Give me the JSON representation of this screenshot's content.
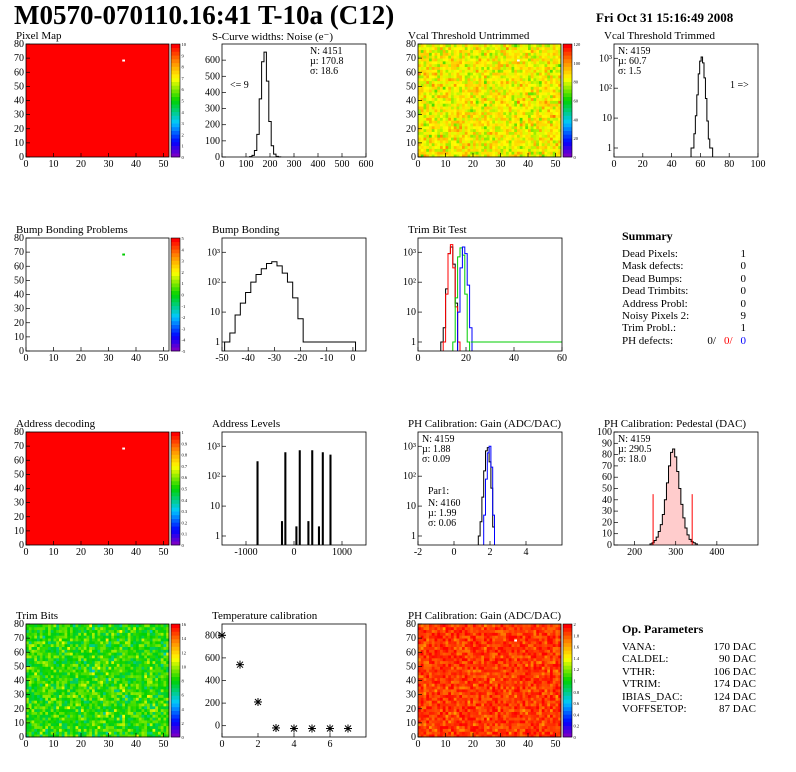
{
  "header": {
    "title": "M0570-070110.16:41 T-10a (C12)",
    "date": "Fri Oct 31 15:16:49 2008"
  },
  "summary": {
    "title": "Summary",
    "rows": [
      {
        "label": "Dead Pixels:",
        "value": "1"
      },
      {
        "label": "Mask defects:",
        "value": "0"
      },
      {
        "label": "Dead Bumps:",
        "value": "0"
      },
      {
        "label": "Dead Trimbits:",
        "value": "0"
      },
      {
        "label": "Address Probl:",
        "value": "0"
      },
      {
        "label": "Noisy Pixels 2:",
        "value": "9"
      },
      {
        "label": "Trim Probl.:",
        "value": "1"
      }
    ],
    "ph_defects": {
      "label": "PH defects:",
      "v1": "0/",
      "v2": "0/",
      "v3": "0"
    }
  },
  "op_params": {
    "title": "Op. Parameters",
    "rows": [
      {
        "label": "VANA:",
        "value": "170 DAC"
      },
      {
        "label": "CALDEL:",
        "value": "90 DAC"
      },
      {
        "label": "VTHR:",
        "value": "106 DAC"
      },
      {
        "label": "VTRIM:",
        "value": "174 DAC"
      },
      {
        "label": "IBIAS_DAC:",
        "value": "124 DAC"
      },
      {
        "label": "VOFFSETOP:",
        "value": "87 DAC"
      }
    ]
  },
  "colors": {
    "red": "#ff0000",
    "blue": "#0000ff",
    "green": "#00cc00"
  },
  "chart_data": [
    {
      "id": "pixelmap",
      "type": "heatmap",
      "title": "Pixel Map",
      "xlim": [
        0,
        52
      ],
      "ylim": [
        0,
        80
      ],
      "xticks": [
        0,
        10,
        20,
        30,
        40,
        50
      ],
      "yticks": [
        0,
        10,
        20,
        30,
        40,
        50,
        60,
        70,
        80
      ],
      "palette_labels": [
        "0",
        "1",
        "2",
        "3",
        "4",
        "5",
        "6",
        "7",
        "8",
        "9",
        "10"
      ],
      "fill": "uniform",
      "fill_value": 10,
      "special": [
        {
          "x": 35,
          "y": 68,
          "value": 0
        }
      ]
    },
    {
      "id": "scurve",
      "type": "bar",
      "title": "S-Curve widths: Noise (e⁻)",
      "xlim": [
        0,
        600
      ],
      "ylim": [
        0,
        700
      ],
      "xticks": [
        0,
        100,
        200,
        300,
        400,
        500,
        600
      ],
      "yticks": [
        0,
        100,
        200,
        300,
        400,
        500,
        600
      ],
      "stats": [
        "N: 4151",
        "µ: 170.8",
        "σ: 18.6"
      ],
      "annotation": "<= 9",
      "series": [
        {
          "name": "",
          "color": "#000",
          "x": [
            120,
            130,
            140,
            150,
            160,
            170,
            180,
            190,
            200,
            210,
            220,
            230,
            240
          ],
          "values": [
            2,
            10,
            40,
            140,
            360,
            590,
            650,
            470,
            220,
            70,
            18,
            4,
            1
          ]
        }
      ]
    },
    {
      "id": "vcal_untrimmed",
      "type": "heatmap",
      "title": "Vcal Threshold Untrimmed",
      "xlim": [
        0,
        52
      ],
      "ylim": [
        0,
        80
      ],
      "xticks": [
        0,
        10,
        20,
        30,
        40,
        50
      ],
      "yticks": [
        0,
        10,
        20,
        30,
        40,
        50,
        60,
        70,
        80
      ],
      "palette_labels": [
        "0",
        "20",
        "40",
        "60",
        "80",
        "100",
        "120"
      ],
      "fill": "noise",
      "fill_value": 85,
      "spread": 20,
      "special": [
        {
          "x": 36,
          "y": 68,
          "value": 140
        }
      ]
    },
    {
      "id": "vcal_trimmed",
      "type": "bar",
      "title": "Vcal Threshold Trimmed",
      "log": true,
      "xlim": [
        0,
        100
      ],
      "ylim": [
        0.5,
        3000
      ],
      "xticks": [
        0,
        20,
        40,
        60,
        80,
        100
      ],
      "yticks": [
        1,
        10,
        100,
        1000
      ],
      "ytick_labels": [
        "1",
        "10",
        "10²",
        "10³"
      ],
      "stats": [
        "N: 4159",
        "µ: 60.7",
        "σ: 1.5"
      ],
      "annotation": "1 =>",
      "series": [
        {
          "name": "",
          "color": "#000",
          "x": [
            54,
            55,
            56,
            57,
            58,
            59,
            60,
            61,
            62,
            63,
            64,
            65,
            66,
            67,
            68
          ],
          "values": [
            1,
            1,
            3,
            12,
            60,
            300,
            800,
            1100,
            700,
            220,
            45,
            8,
            2,
            1,
            1
          ]
        }
      ]
    },
    {
      "id": "bump_problems",
      "type": "heatmap",
      "title": "Bump Bonding Problems",
      "xlim": [
        0,
        52
      ],
      "ylim": [
        0,
        80
      ],
      "xticks": [
        0,
        10,
        20,
        30,
        40,
        50
      ],
      "yticks": [
        0,
        10,
        20,
        30,
        40,
        50,
        60,
        70,
        80
      ],
      "palette_labels": [
        "-5",
        "-4",
        "-3",
        "-2",
        "-1",
        "0",
        "1",
        "2",
        "3",
        "4",
        "5"
      ],
      "fill": "none",
      "special": [
        {
          "x": 35,
          "y": 68,
          "value": 0.4
        }
      ]
    },
    {
      "id": "bump_bonding",
      "type": "bar",
      "title": "Bump Bonding",
      "log": true,
      "xlim": [
        -50,
        5
      ],
      "ylim": [
        0.5,
        3000
      ],
      "xticks": [
        -50,
        -40,
        -30,
        -20,
        -10,
        0
      ],
      "yticks": [
        1,
        10,
        100,
        1000
      ],
      "ytick_labels": [
        "1",
        "10",
        "10²",
        "10³"
      ],
      "series": [
        {
          "name": "",
          "color": "#000",
          "x": [
            -48,
            -46,
            -44,
            -42,
            -40,
            -38,
            -36,
            -34,
            -32,
            -30,
            -28,
            -26,
            -24,
            -22,
            -20,
            -18,
            0
          ],
          "values": [
            1,
            2,
            8,
            20,
            45,
            100,
            180,
            280,
            420,
            480,
            350,
            200,
            100,
            30,
            6,
            1,
            1
          ]
        }
      ]
    },
    {
      "id": "trimbit_test",
      "type": "bar",
      "title": "Trim Bit Test",
      "log": true,
      "xlim": [
        0,
        60
      ],
      "ylim": [
        0.5,
        3000
      ],
      "xticks": [
        0,
        20,
        40,
        60
      ],
      "yticks": [
        1,
        10,
        100,
        1000
      ],
      "ytick_labels": [
        "1",
        "10",
        "10²",
        "10³"
      ],
      "series": [
        {
          "name": "",
          "color": "#000",
          "x": [
            10,
            11,
            12,
            13,
            14,
            15,
            16
          ],
          "values": [
            1,
            3,
            60,
            900,
            1500,
            400,
            20
          ]
        },
        {
          "name": "",
          "color": "#ff0000",
          "x": [
            11,
            12,
            13,
            14,
            15,
            16,
            17
          ],
          "values": [
            1,
            40,
            900,
            1800,
            300,
            15,
            1
          ]
        },
        {
          "name": "",
          "color": "#00cc00",
          "x": [
            15,
            16,
            17,
            18,
            19,
            20,
            21
          ],
          "values": [
            1,
            30,
            700,
            1400,
            800,
            40,
            1
          ]
        },
        {
          "name": "",
          "color": "#0000ff",
          "x": [
            17,
            18,
            19,
            20,
            21,
            22
          ],
          "values": [
            10,
            300,
            1500,
            900,
            80,
            3
          ]
        }
      ]
    },
    {
      "id": "address_decoding",
      "type": "heatmap",
      "title": "Address decoding",
      "xlim": [
        0,
        52
      ],
      "ylim": [
        0,
        80
      ],
      "xticks": [
        0,
        10,
        20,
        30,
        40,
        50
      ],
      "yticks": [
        0,
        10,
        20,
        30,
        40,
        50,
        60,
        70,
        80
      ],
      "palette_labels": [
        "0",
        "0.1",
        "0.2",
        "0.3",
        "0.4",
        "0.5",
        "0.6",
        "0.7",
        "0.8",
        "0.9",
        "1"
      ],
      "fill": "uniform",
      "fill_value": 1,
      "special": [
        {
          "x": 35,
          "y": 68,
          "value": 0
        }
      ]
    },
    {
      "id": "address_levels",
      "type": "bar",
      "title": "Address Levels",
      "log": true,
      "xlim": [
        -1500,
        1500
      ],
      "ylim": [
        0.5,
        3000
      ],
      "xticks": [
        -1000,
        0,
        1000
      ],
      "yticks": [
        1,
        10,
        100,
        1000
      ],
      "ytick_labels": [
        "1",
        "10",
        "10²",
        "10³"
      ],
      "series": [
        {
          "name": "",
          "color": "#000",
          "x": [
            -760,
            -250,
            -180,
            50,
            120,
            300,
            380,
            520,
            600,
            760
          ],
          "values": [
            300,
            3,
            600,
            2,
            700,
            3,
            700,
            2,
            600,
            500
          ]
        }
      ]
    },
    {
      "id": "ph_gain",
      "type": "bar",
      "title": "PH Calibration: Gain (ADC/DAC)",
      "log": true,
      "xlim": [
        -2,
        6
      ],
      "ylim": [
        0.5,
        3000
      ],
      "xticks": [
        -2,
        0,
        2,
        4
      ],
      "yticks": [
        1,
        10,
        100,
        1000
      ],
      "ytick_labels": [
        "1",
        "10",
        "10²",
        "10³"
      ],
      "stats": [
        "N: 4159",
        "µ: 1.88",
        "σ: 0.09"
      ],
      "stats2_title": "Par1:",
      "stats2": [
        "N: 4160",
        "µ: 1.99",
        "σ: 0.06"
      ],
      "series": [
        {
          "name": "",
          "color": "#000",
          "x": [
            1.4,
            1.5,
            1.6,
            1.7,
            1.8,
            1.9,
            2.0,
            2.1,
            2.2
          ],
          "values": [
            1,
            3,
            20,
            150,
            700,
            900,
            300,
            40,
            2
          ]
        },
        {
          "name": "",
          "color": "#0000ff",
          "x": [
            1.7,
            1.8,
            1.9,
            2.0,
            2.1,
            2.2
          ],
          "values": [
            5,
            80,
            600,
            1000,
            200,
            5
          ]
        }
      ]
    },
    {
      "id": "ph_pedestal",
      "type": "bar",
      "title": "PH Calibration: Pedestal (DAC)",
      "xlim": [
        150,
        500
      ],
      "ylim": [
        0,
        100
      ],
      "xticks": [
        200,
        300,
        400
      ],
      "yticks": [
        0,
        10,
        20,
        30,
        40,
        50,
        60,
        70,
        80,
        90,
        100
      ],
      "stats": [
        "N: 4159",
        "µ: 290.5",
        "σ: 18.0"
      ],
      "cut_lines": [
        245,
        340
      ],
      "series": [
        {
          "name": "",
          "color": "#000",
          "x": [
            240,
            245,
            250,
            255,
            260,
            265,
            270,
            275,
            280,
            285,
            290,
            295,
            300,
            305,
            310,
            315,
            320,
            325,
            330,
            335,
            340,
            345,
            350
          ],
          "values": [
            1,
            2,
            4,
            7,
            12,
            18,
            27,
            40,
            55,
            70,
            82,
            85,
            78,
            65,
            50,
            36,
            24,
            15,
            9,
            5,
            3,
            2,
            1
          ]
        }
      ]
    },
    {
      "id": "trim_bits",
      "type": "heatmap",
      "title": "Trim Bits",
      "xlim": [
        0,
        52
      ],
      "ylim": [
        0,
        80
      ],
      "xticks": [
        0,
        10,
        20,
        30,
        40,
        50
      ],
      "yticks": [
        0,
        10,
        20,
        30,
        40,
        50,
        60,
        70,
        80
      ],
      "palette_labels": [
        "0",
        "2",
        "4",
        "6",
        "8",
        "10",
        "12",
        "14",
        "16"
      ],
      "fill": "noise",
      "fill_value": 8.5,
      "spread": 3,
      "special": []
    },
    {
      "id": "temperature",
      "type": "scatter",
      "title": "Temperature calibration",
      "xlim": [
        0,
        8
      ],
      "ylim": [
        -100,
        900
      ],
      "xticks": [
        0,
        2,
        4,
        6
      ],
      "yticks": [
        0,
        200,
        400,
        600,
        800
      ],
      "series": [
        {
          "name": "",
          "color": "#000",
          "x": [
            0,
            1,
            2,
            3,
            4,
            5,
            6,
            7
          ],
          "values": [
            800,
            540,
            210,
            -20,
            -25,
            -25,
            -25,
            -25
          ]
        }
      ]
    },
    {
      "id": "ph_gain_map",
      "type": "heatmap",
      "title": "PH Calibration: Gain (ADC/DAC)",
      "xlim": [
        0,
        52
      ],
      "ylim": [
        0,
        80
      ],
      "xticks": [
        0,
        10,
        20,
        30,
        40,
        50
      ],
      "yticks": [
        0,
        10,
        20,
        30,
        40,
        50,
        60,
        70,
        80
      ],
      "palette_labels": [
        "0",
        "0.2",
        "0.4",
        "0.6",
        "0.8",
        "1",
        "1.2",
        "1.4",
        "1.6",
        "1.8",
        "2"
      ],
      "fill": "noise",
      "fill_value": 1.88,
      "spread": 0.25,
      "special": [
        {
          "x": 35,
          "y": 68,
          "value": 2.5
        }
      ]
    }
  ]
}
